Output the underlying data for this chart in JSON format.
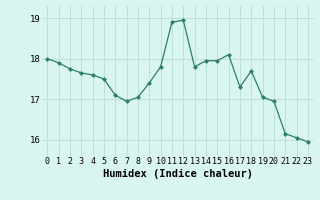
{
  "x": [
    0,
    1,
    2,
    3,
    4,
    5,
    6,
    7,
    8,
    9,
    10,
    11,
    12,
    13,
    14,
    15,
    16,
    17,
    18,
    19,
    20,
    21,
    22,
    23
  ],
  "y": [
    18.0,
    17.9,
    17.75,
    17.65,
    17.6,
    17.5,
    17.1,
    16.95,
    17.05,
    17.4,
    17.8,
    18.9,
    18.95,
    17.8,
    17.95,
    17.95,
    18.1,
    17.3,
    17.7,
    17.05,
    16.95,
    16.15,
    16.05,
    15.95
  ],
  "line_color": "#2e7d6e",
  "marker": "D",
  "marker_size": 2.0,
  "bg_color": "#d8f5f0",
  "grid_color": "#b8dcd6",
  "xlabel": "Humidex (Indice chaleur)",
  "ylim": [
    15.6,
    19.3
  ],
  "xlim": [
    -0.5,
    23.5
  ],
  "yticks": [
    16,
    17,
    18,
    19
  ],
  "tick_fontsize": 6.5,
  "xlabel_fontsize": 7.5
}
